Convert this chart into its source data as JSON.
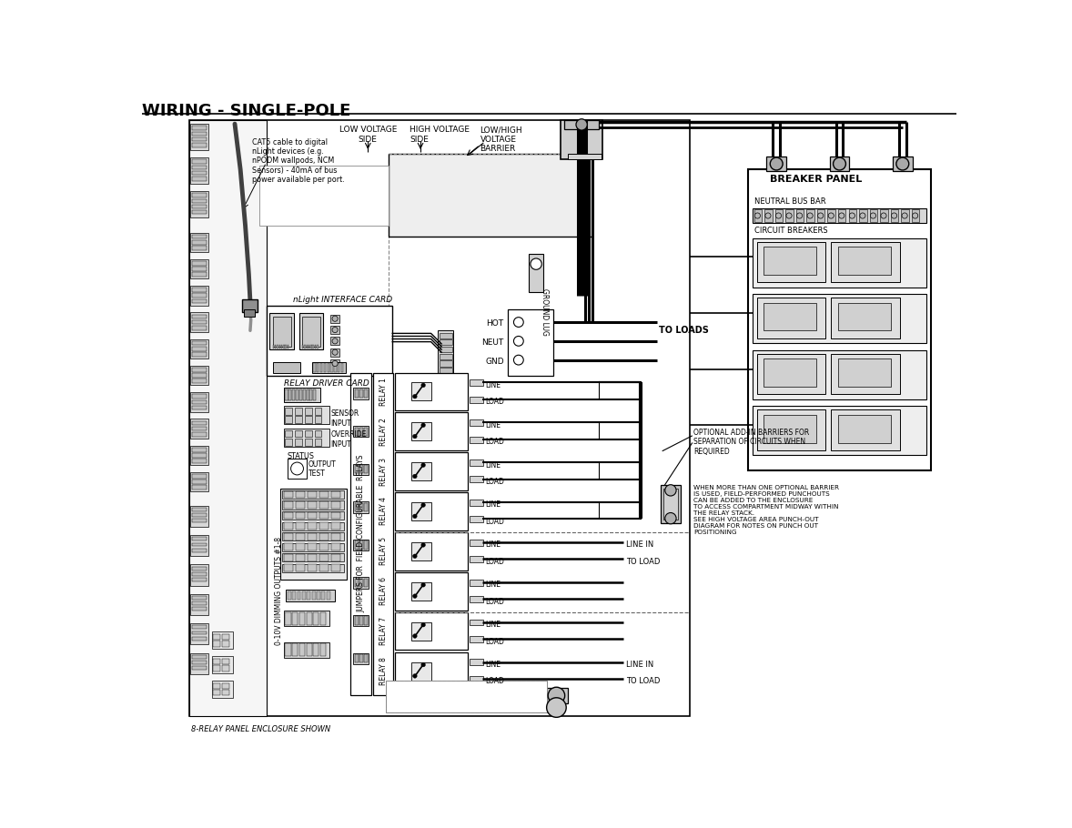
{
  "title": "WIRING - SINGLE-POLE",
  "footer_note": "8-RELAY PANEL ENCLOSURE SHOWN",
  "labels": {
    "cat5": "CAT5 cable to digital\nnLight devices (e.g.\nnPODM wallpods, NCM\nSensors) - 40mA of bus\npower available per port.",
    "low_voltage": "LOW VOLTAGE\nSIDE",
    "high_voltage": "HIGH VOLTAGE\nSIDE",
    "barrier": "LOW/HIGH\nVOLTAGE\nBARRIER",
    "interface_card": "nLight INTERFACE CARD",
    "relay_driver": "RELAY DRIVER CARD",
    "sensor_input": "SENSOR\nINPUT",
    "override_input": "OVERRIDE\nINPUT",
    "status": "STATUS",
    "output_test": "OUTPUT\nTEST",
    "dimming": "0-10V DIMMING OUTPUTS #1-8",
    "ground_lug": "GROUND LUG",
    "hot": "HOT",
    "neut": "NEUT",
    "gnd": "GND",
    "to_loads": "TO LOADS",
    "breaker_panel": "BREAKER PANEL",
    "neutral_bus": "NEUTRAL BUS BAR",
    "circuit_breakers": "CIRCUIT BREAKERS",
    "line_in": "LINE IN",
    "to_load": "TO LOAD",
    "optional_barriers": "OPTIONAL ADD-IN BARRIERS FOR\nSEPARATION OF CIRCUITS WHEN\nREQUIRED",
    "when_more": "WHEN MORE THAN ONE OPTIONAL BARRIER\nIS USED, FIELD-PERFORMED PUNCHOUTS\nCAN BE ADDED TO THE ENCLOSURE\nTO ACCESS COMPARTMENT MIDWAY WITHIN\nTHE RELAY STACK.\nSEE HIGH VOLTAGE AREA PUNCH-OUT\nDIAGRAM FOR NOTES ON PUNCH OUT\nPOSITIONING"
  },
  "relay_names": [
    "RELAY 1",
    "RELAY 2",
    "RELAY 3",
    "RELAY 4",
    "RELAY 5",
    "RELAY 6",
    "RELAY 7",
    "RELAY 8"
  ]
}
